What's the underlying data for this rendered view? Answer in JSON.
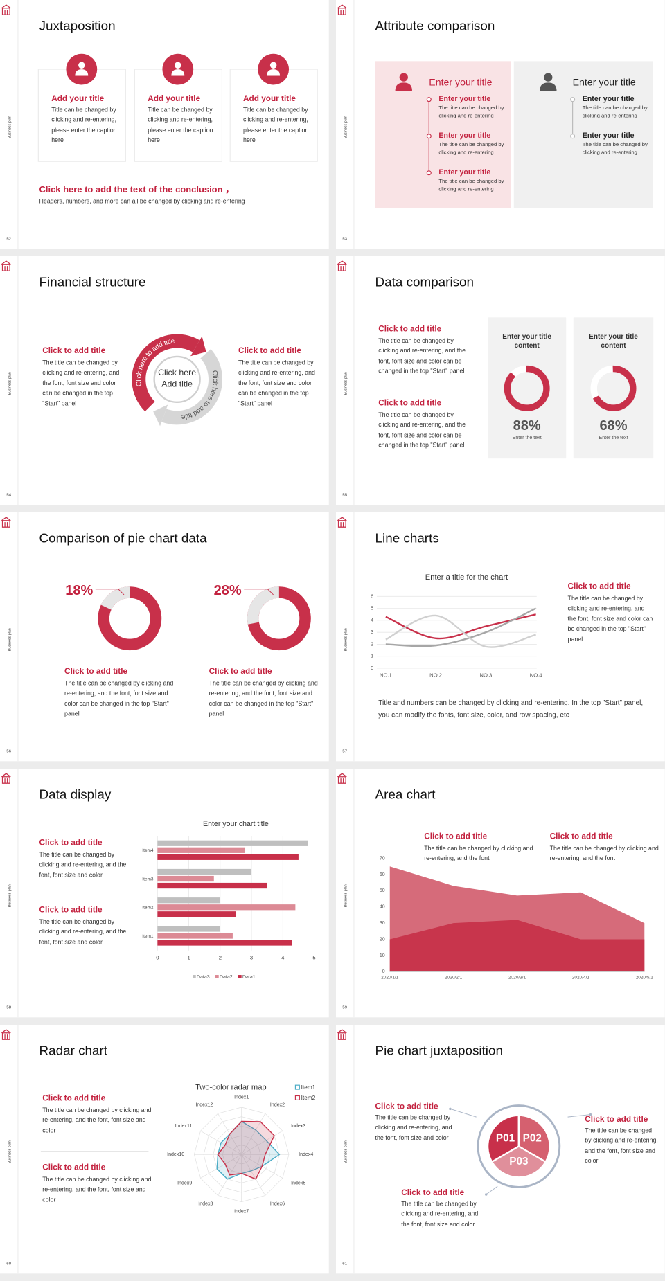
{
  "side_label": "Business plan",
  "slides": [
    {
      "page": "52",
      "title": "Juxtaposition",
      "cards": [
        {
          "title": "Add your title",
          "text": "Title can be changed by clicking and re-entering, please enter the caption here"
        },
        {
          "title": "Add your title",
          "text": "Title can be changed by clicking and re-entering, please enter the caption here"
        },
        {
          "title": "Add your title",
          "text": "Title can be changed by clicking and re-entering, please enter the caption here"
        }
      ],
      "conclusion": "Click here to add the text of the conclusion ，",
      "note": "Headers, numbers, and more can all be changed by clicking and re-entering"
    },
    {
      "page": "53",
      "title": "Attribute comparison",
      "panels": [
        {
          "title": "Enter your title",
          "items": [
            {
              "title": "Enter your title",
              "text": "The title can be changed by clicking and re-entering"
            },
            {
              "title": "Enter your title",
              "text": "The title can be changed by clicking and re-entering"
            },
            {
              "title": "Enter your title",
              "text": "The title can be changed by clicking and re-entering"
            }
          ]
        },
        {
          "title": "Enter your title",
          "items": [
            {
              "title": "Enter your title",
              "text": "The title can be changed by clicking and re-entering"
            },
            {
              "title": "Enter your title",
              "text": "The title can be changed by clicking and re-entering"
            }
          ]
        }
      ]
    },
    {
      "page": "54",
      "title": "Financial structure",
      "blocks": [
        {
          "title": "Click to add title",
          "text": "The title can be changed by clicking and re-entering, and the font, font size and color can be changed in the top \"Start\" panel"
        },
        {
          "title": "Click to add title",
          "text": "The title can be changed by clicking and re-entering, and the font, font size and color can be changed in the top \"Start\" panel"
        }
      ],
      "arc_labels": [
        "Click here to add title",
        "Click here to add title"
      ],
      "center": "Click here Add title"
    },
    {
      "page": "55",
      "title": "Data comparison",
      "blocks": [
        {
          "title": "Click to add title",
          "text": "The title can be changed by clicking and re-entering, and the font, font size and color can be changed in the top \"Start\" panel"
        },
        {
          "title": "Click to add title",
          "text": "The title can be changed by clicking and re-entering, and the font, font size and color can be changed in the top \"Start\" panel"
        }
      ],
      "cards": [
        {
          "title": "Enter your title content",
          "value": 88,
          "value_label": "88%",
          "caption": "Enter the text"
        },
        {
          "title": "Enter your title content",
          "value": 68,
          "value_label": "68%",
          "caption": "Enter the text"
        }
      ]
    },
    {
      "page": "56",
      "title": "Comparison of pie chart data",
      "donuts": [
        {
          "value": 18,
          "value_label": "18%",
          "title": "Click to add title",
          "text": "The title can be changed by clicking and re-entering, and the font, font size and color can be changed in the top \"Start\" panel"
        },
        {
          "value": 28,
          "value_label": "28%",
          "title": "Click to add title",
          "text": "The title can be changed by clicking and re-entering, and the font, font size and color can be changed in the top \"Start\" panel"
        }
      ]
    },
    {
      "page": "57",
      "title": "Line charts",
      "chart_data": {
        "type": "line",
        "title": "Enter a title for the chart",
        "categories": [
          "NO.1",
          "NO.2",
          "NO.3",
          "NO.4"
        ],
        "ylim": [
          0,
          6
        ],
        "yticks": [
          0,
          1,
          2,
          3,
          4,
          5,
          6
        ],
        "grid": true,
        "smooth": true,
        "series": [
          {
            "color": "#c8304a",
            "values": [
              4.3,
              2.5,
              3.5,
              4.5
            ]
          },
          {
            "color": "#a6a6a6",
            "values": [
              2,
              1.9,
              3,
              5
            ]
          },
          {
            "color": "#d0d0d0",
            "values": [
              2.4,
              4.4,
              1.8,
              2.8
            ]
          }
        ]
      },
      "block": {
        "title": "Click to add title",
        "text": "The title can be changed by clicking and re-entering, and the font, font size and color can be changed in the top \"Start\" panel"
      },
      "note": "Title and numbers can be changed by clicking and re-entering. In the top \"Start\" panel, you can modify the fonts, font size, color, and row spacing, etc"
    },
    {
      "page": "58",
      "title": "Data display",
      "chart_data": {
        "type": "bar",
        "horizontal": true,
        "title": "Enter your chart title",
        "categories": [
          "Item1",
          "Item2",
          "Item3",
          "Item4"
        ],
        "xlim": [
          0,
          5
        ],
        "xticks": [
          0,
          1,
          2,
          3,
          4,
          5
        ],
        "grid": true,
        "series": [
          {
            "name": "Data3",
            "color": "#bfbfbf",
            "values": [
              2,
              2,
              3,
              4.8
            ]
          },
          {
            "name": "Data2",
            "color": "#dc8a95",
            "values": [
              2.4,
              4.4,
              1.8,
              2.8
            ]
          },
          {
            "name": "Data1",
            "color": "#c8304a",
            "values": [
              4.3,
              2.5,
              3.5,
              4.5
            ]
          }
        ]
      },
      "blocks": [
        {
          "title": "Click to add title",
          "text": "The title can be changed by clicking and re-entering, and the font, font size and color"
        },
        {
          "title": "Click to add title",
          "text": "The title can be changed by clicking and re-entering, and the font, font size and color"
        }
      ]
    },
    {
      "page": "59",
      "title": "Area chart",
      "chart_data": {
        "type": "area",
        "categories": [
          "2020/1/1",
          "2020/2/1",
          "2020/3/1",
          "2020/4/1",
          "2020/5/1"
        ],
        "ylim": [
          0,
          70
        ],
        "yticks": [
          0,
          10,
          20,
          30,
          40,
          50,
          60,
          70
        ],
        "series": [
          {
            "color": "#d66b7a",
            "values": [
              65,
              53,
              47,
              49,
              30
            ]
          },
          {
            "color": "#c8354c",
            "values": [
              20,
              30,
              32,
              20,
              20
            ]
          }
        ]
      },
      "blocks": [
        {
          "title": "Click to add title",
          "text": "The title can be changed by clicking and re-entering, and the font"
        },
        {
          "title": "Click to add title",
          "text": "The title can be changed by clicking and re-entering, and the font"
        }
      ]
    },
    {
      "page": "60",
      "title": "Radar chart",
      "chart_data": {
        "type": "radar",
        "title": "Two-color radar map",
        "categories": [
          "Index1",
          "Index2",
          "Index3",
          "Index4",
          "Index5",
          "Index6",
          "Index7",
          "Index8",
          "Index9",
          "Index10",
          "Index11",
          "Index12"
        ],
        "rlim": [
          0,
          10
        ],
        "series": [
          {
            "name": "Item1",
            "color": "#4bacc6",
            "values": [
              7,
              6,
              6,
              8,
              5,
              4,
              4,
              6,
              6,
              5,
              5,
              5
            ]
          },
          {
            "name": "Item2",
            "color": "#c8304a",
            "values": [
              7,
              8,
              8,
              5,
              5,
              6,
              4,
              5,
              4,
              5,
              4,
              5
            ]
          }
        ]
      },
      "blocks": [
        {
          "title": "Click to add title",
          "text": "The title can be changed by clicking and re-entering, and the font, font size and color"
        },
        {
          "title": "Click to add title",
          "text": "The title can be changed by clicking and re-entering, and the font, font size and color"
        }
      ]
    },
    {
      "page": "61",
      "title": "Pie chart juxtaposition",
      "segments": [
        "P01",
        "P02",
        "P03"
      ],
      "blocks": [
        {
          "title": "Click to add title",
          "text": "The title can be changed by clicking and re-entering, and the font, font size and color"
        },
        {
          "title": "Click to add title",
          "text": "The title can be changed by clicking and re-entering, and the font, font size and color"
        },
        {
          "title": "Click to add title",
          "text": "The title can be changed by clicking and re-entering, and the font, font size and color"
        }
      ]
    }
  ]
}
